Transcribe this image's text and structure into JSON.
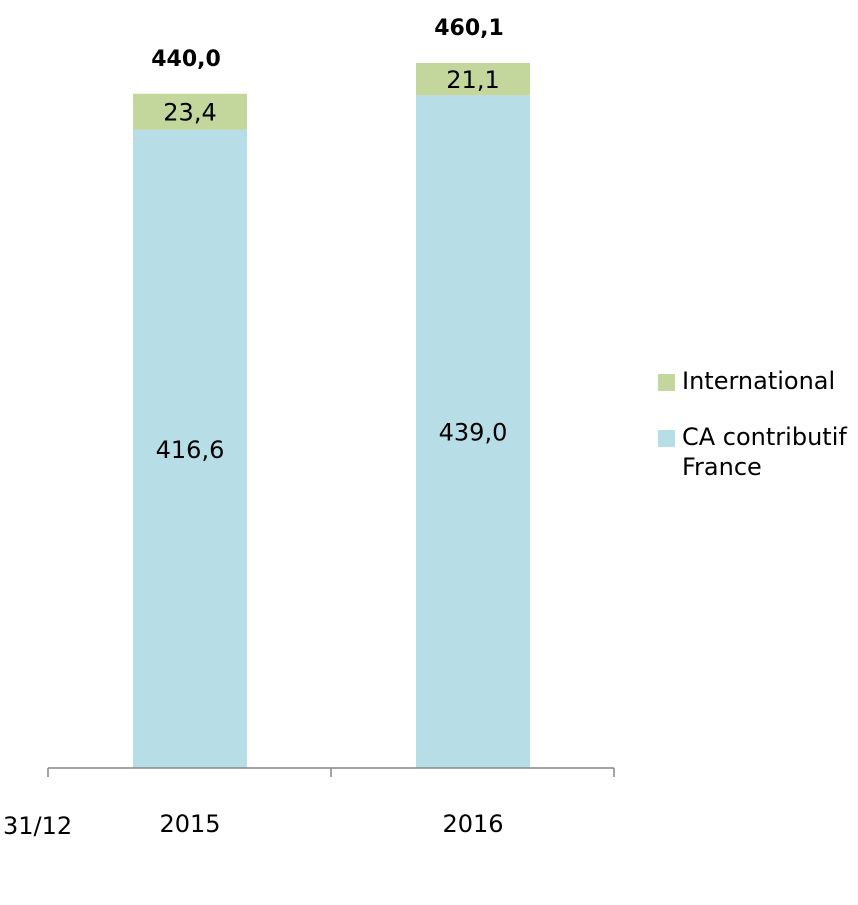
{
  "chart_data": {
    "type": "bar",
    "stacked": true,
    "categories": [
      "2015",
      "2016"
    ],
    "axis_prefix_label": "31/12",
    "series": [
      {
        "name": "CA contributif France",
        "values": [
          416.6,
          439.0
        ],
        "labels": [
          "416,6",
          "439,0"
        ],
        "color": "#b7dde6"
      },
      {
        "name": "International",
        "values": [
          23.4,
          21.1
        ],
        "labels": [
          "23,4",
          "21,1"
        ],
        "color": "#c3d69b"
      }
    ],
    "totals": [
      440.0,
      460.1
    ],
    "total_labels": [
      "440,0",
      "460,1"
    ],
    "ylim": [
      0,
      460.1
    ],
    "grid": false,
    "legend_position": "right",
    "legend_order": [
      "International",
      "CA contributif France"
    ]
  }
}
